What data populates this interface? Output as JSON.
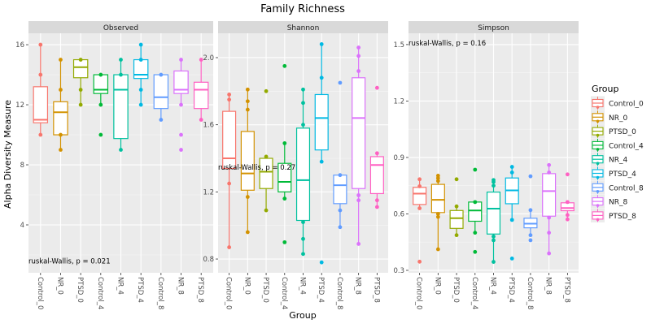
{
  "chart_data": {
    "type": "boxplot",
    "title": "Family Richness",
    "xlabel": "Group",
    "ylabel": "Alpha Diversity Measure",
    "categories": [
      "Control_0",
      "NR_0",
      "PTSD_0",
      "Control_4",
      "NR_4",
      "PTSD_4",
      "Control_8",
      "NR_8",
      "PTSD_8"
    ],
    "colors": [
      "#F8766D",
      "#D39200",
      "#93AA00",
      "#00BA38",
      "#00C19F",
      "#00B9E3",
      "#619CFF",
      "#DB72FB",
      "#FF61C3"
    ],
    "legend": {
      "title": "Group",
      "position": "right"
    },
    "panels": [
      {
        "name": "Observed",
        "annotation": "ruskal-Wallis, p = 0.021",
        "ylim": [
          0.81,
          16.76
        ],
        "yticks": [
          4,
          8,
          12,
          16
        ],
        "ytick_labels": [
          "4",
          "8",
          "12",
          "16"
        ],
        "ann_pos": [
          0.0,
          0.95
        ],
        "boxes": [
          {
            "q1": 10.8,
            "med": 11,
            "q3": 13.2,
            "lo": 10,
            "hi": 16,
            "points": [
              16,
              14,
              10
            ]
          },
          {
            "q1": 10,
            "med": 11.5,
            "q3": 12.2,
            "lo": 9,
            "hi": 15,
            "points": [
              15,
              13,
              10,
              9
            ]
          },
          {
            "q1": 13.8,
            "med": 14.5,
            "q3": 15,
            "lo": 12,
            "hi": 15,
            "points": [
              15,
              13,
              12
            ]
          },
          {
            "q1": 12.75,
            "med": 13,
            "q3": 14,
            "lo": 12,
            "hi": 14,
            "points": [
              14,
              12,
              10
            ]
          },
          {
            "q1": 9.75,
            "med": 13,
            "q3": 14,
            "lo": 9,
            "hi": 15,
            "points": [
              15,
              14,
              9
            ]
          },
          {
            "q1": 13.75,
            "med": 14,
            "q3": 15,
            "lo": 12,
            "hi": 16,
            "points": [
              16,
              15,
              13,
              12
            ]
          },
          {
            "q1": 11.75,
            "med": 12.5,
            "q3": 14,
            "lo": 11,
            "hi": 14,
            "points": [
              14,
              11
            ]
          },
          {
            "q1": 12.75,
            "med": 13,
            "q3": 14.25,
            "lo": 12,
            "hi": 15,
            "points": [
              15,
              12,
              10,
              9
            ]
          },
          {
            "q1": 11.75,
            "med": 13,
            "q3": 13.5,
            "lo": 11,
            "hi": 15,
            "points": [
              15,
              11
            ]
          }
        ]
      },
      {
        "name": "Shannon",
        "annotation": "ruskal-Wallis, p = 0.27",
        "ylim": [
          0.718,
          2.145
        ],
        "yticks": [
          0.8,
          1.2,
          1.6,
          2.0
        ],
        "ytick_labels": [
          "0.8",
          "1.2",
          "1.6",
          "2.0"
        ],
        "ann_pos": [
          0.0,
          0.56
        ],
        "boxes": [
          {
            "q1": 1.34,
            "med": 1.4,
            "q3": 1.68,
            "lo": 0.87,
            "hi": 1.78,
            "points": [
              1.78,
              1.75,
              1.25,
              0.87
            ]
          },
          {
            "q1": 1.21,
            "med": 1.31,
            "q3": 1.56,
            "lo": 0.96,
            "hi": 1.81,
            "points": [
              1.81,
              1.74,
              1.69,
              1.17,
              0.96
            ]
          },
          {
            "q1": 1.22,
            "med": 1.32,
            "q3": 1.4,
            "lo": 1.09,
            "hi": 1.41,
            "points": [
              1.8,
              1.41,
              1.09
            ]
          },
          {
            "q1": 1.2,
            "med": 1.26,
            "q3": 1.37,
            "lo": 1.16,
            "hi": 1.49,
            "points": [
              1.95,
              1.49,
              1.16,
              0.9
            ]
          },
          {
            "q1": 1.03,
            "med": 1.27,
            "q3": 1.58,
            "lo": 0.83,
            "hi": 1.81,
            "points": [
              1.81,
              1.73,
              1.6,
              1.02,
              0.92,
              0.83
            ]
          },
          {
            "q1": 1.45,
            "med": 1.64,
            "q3": 1.78,
            "lo": 1.38,
            "hi": 2.08,
            "points": [
              2.08,
              1.88,
              1.38,
              0.78
            ]
          },
          {
            "q1": 1.13,
            "med": 1.24,
            "q3": 1.3,
            "lo": 0.99,
            "hi": 1.3,
            "points": [
              1.85,
              1.3,
              1.09,
              0.99
            ]
          },
          {
            "q1": 1.22,
            "med": 1.64,
            "q3": 1.88,
            "lo": 0.89,
            "hi": 2.06,
            "points": [
              2.06,
              2.01,
              1.92,
              1.18,
              1.15,
              0.89
            ]
          },
          {
            "q1": 1.19,
            "med": 1.36,
            "q3": 1.41,
            "lo": 1.11,
            "hi": 1.43,
            "points": [
              1.82,
              1.43,
              1.15,
              1.11
            ]
          }
        ]
      },
      {
        "name": "Simpson",
        "annotation": "ruskal-Wallis, p = 0.16",
        "ylim": [
          0.287,
          1.56
        ],
        "yticks": [
          0.3,
          0.6,
          0.9,
          1.2,
          1.5
        ],
        "ytick_labels": [
          "0.3",
          "0.6",
          "0.9",
          "1.2",
          "1.5"
        ],
        "ann_pos": [
          0.0,
          0.04
        ],
        "boxes": [
          {
            "q1": 0.65,
            "med": 0.708,
            "q3": 0.741,
            "lo": 0.63,
            "hi": 0.784,
            "points": [
              0.784,
              0.747,
              0.63,
              0.346
            ]
          },
          {
            "q1": 0.607,
            "med": 0.675,
            "q3": 0.757,
            "lo": 0.412,
            "hi": 0.803,
            "points": [
              0.803,
              0.79,
              0.775,
              0.6,
              0.584,
              0.412
            ]
          },
          {
            "q1": 0.523,
            "med": 0.577,
            "q3": 0.618,
            "lo": 0.487,
            "hi": 0.64,
            "points": [
              0.784,
              0.64,
              0.487
            ]
          },
          {
            "q1": 0.561,
            "med": 0.618,
            "q3": 0.663,
            "lo": 0.5,
            "hi": 0.663,
            "points": [
              0.835,
              0.663,
              0.5,
              0.398
            ]
          },
          {
            "q1": 0.493,
            "med": 0.628,
            "q3": 0.716,
            "lo": 0.345,
            "hi": 0.78,
            "points": [
              0.78,
              0.77,
              0.75,
              0.48,
              0.46,
              0.345
            ]
          },
          {
            "q1": 0.654,
            "med": 0.725,
            "q3": 0.791,
            "lo": 0.568,
            "hi": 0.85,
            "points": [
              0.85,
              0.82,
              0.568,
              0.363
            ]
          },
          {
            "q1": 0.526,
            "med": 0.548,
            "q3": 0.577,
            "lo": 0.487,
            "hi": 0.62,
            "points": [
              0.8,
              0.62,
              0.487,
              0.46
            ]
          },
          {
            "q1": 0.588,
            "med": 0.721,
            "q3": 0.814,
            "lo": 0.39,
            "hi": 0.86,
            "points": [
              0.86,
              0.82,
              0.58,
              0.5,
              0.39
            ]
          },
          {
            "q1": 0.617,
            "med": 0.631,
            "q3": 0.659,
            "lo": 0.571,
            "hi": 0.663,
            "points": [
              0.81,
              0.663,
              0.594,
              0.571
            ]
          }
        ]
      }
    ]
  }
}
